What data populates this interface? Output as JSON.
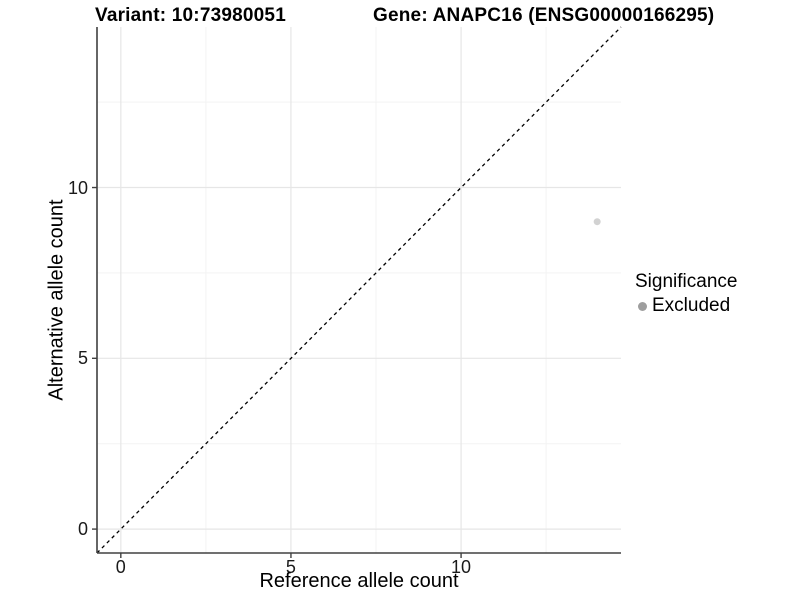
{
  "titles": {
    "left": "Variant: 10:73980051",
    "right": "Gene: ANAPC16 (ENSG00000166295)"
  },
  "chart_data": {
    "type": "scatter",
    "xlabel": "Reference allele count",
    "ylabel": "Alternative allele count",
    "xlim": [
      -0.7,
      14.7
    ],
    "ylim": [
      -0.7,
      14.7
    ],
    "x_ticks": [
      0,
      5,
      10
    ],
    "y_ticks": [
      0,
      5,
      10
    ],
    "x_minor_ticks": [
      2.5,
      7.5,
      12.5
    ],
    "y_minor_ticks": [
      2.5,
      7.5,
      12.5
    ],
    "grid": "on",
    "identity_line": {
      "style": "dashed",
      "slope": 1,
      "intercept": 0,
      "color": "#000000"
    },
    "series": [
      {
        "name": "Excluded",
        "rendered_point_color": "#d2d2d2",
        "points": [
          {
            "x": 14,
            "y": 9
          }
        ]
      }
    ],
    "legend": {
      "title": "Significance",
      "position": "right",
      "items": [
        {
          "label": "Excluded",
          "color": "#9e9e9e"
        }
      ]
    }
  },
  "colors": {
    "background": "#ffffff",
    "grid_major": "#e6e6e6",
    "grid_minor": "#f3f3f3",
    "axis_line": "#404040",
    "tick_label": "#1a1a1a"
  }
}
